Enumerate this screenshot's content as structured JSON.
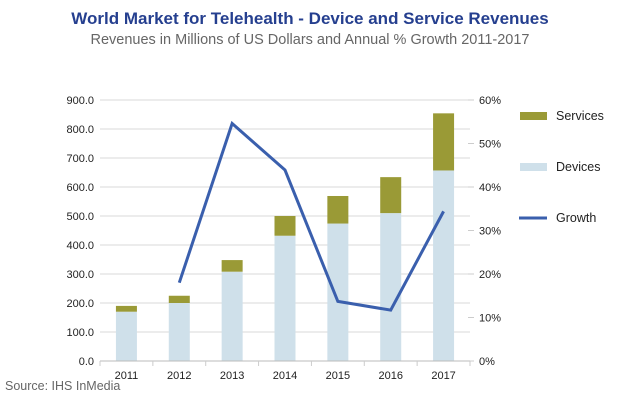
{
  "chart_data": {
    "type": "bar",
    "stacked": true,
    "title": "World Market for Telehealth - Device and Service Revenues",
    "subtitle": "Revenues in Millions of US Dollars and Annual % Growth 2011-2017",
    "source": "Source: IHS InMedia",
    "categories": [
      "2011",
      "2012",
      "2013",
      "2014",
      "2015",
      "2016",
      "2017"
    ],
    "series": [
      {
        "name": "Devices",
        "type": "bar",
        "axis": "left",
        "color": "#cfe0ea",
        "values": [
          170,
          200,
          308,
          432,
          474,
          510,
          657
        ]
      },
      {
        "name": "Services",
        "type": "bar",
        "axis": "left",
        "color": "#9a9a36",
        "values": [
          20,
          25,
          40,
          68,
          95,
          124,
          197
        ]
      },
      {
        "name": "Growth",
        "type": "line",
        "axis": "right",
        "color": "#3a5fad",
        "values": [
          null,
          18.0,
          54.6,
          43.9,
          13.7,
          11.7,
          34.4
        ]
      }
    ],
    "left_axis": {
      "ylim": [
        0,
        900
      ],
      "ticks": [
        "0.0",
        "100.0",
        "200.0",
        "300.0",
        "400.0",
        "500.0",
        "600.0",
        "700.0",
        "800.0",
        "900.0"
      ]
    },
    "right_axis": {
      "ylim": [
        0,
        60
      ],
      "ticks": [
        "0%",
        "10%",
        "20%",
        "30%",
        "40%",
        "50%",
        "60%"
      ]
    },
    "legend": {
      "placement": "right",
      "items": [
        "Services",
        "Devices",
        "Growth"
      ]
    },
    "grid": true,
    "xlabel": "",
    "ylabel": ""
  }
}
